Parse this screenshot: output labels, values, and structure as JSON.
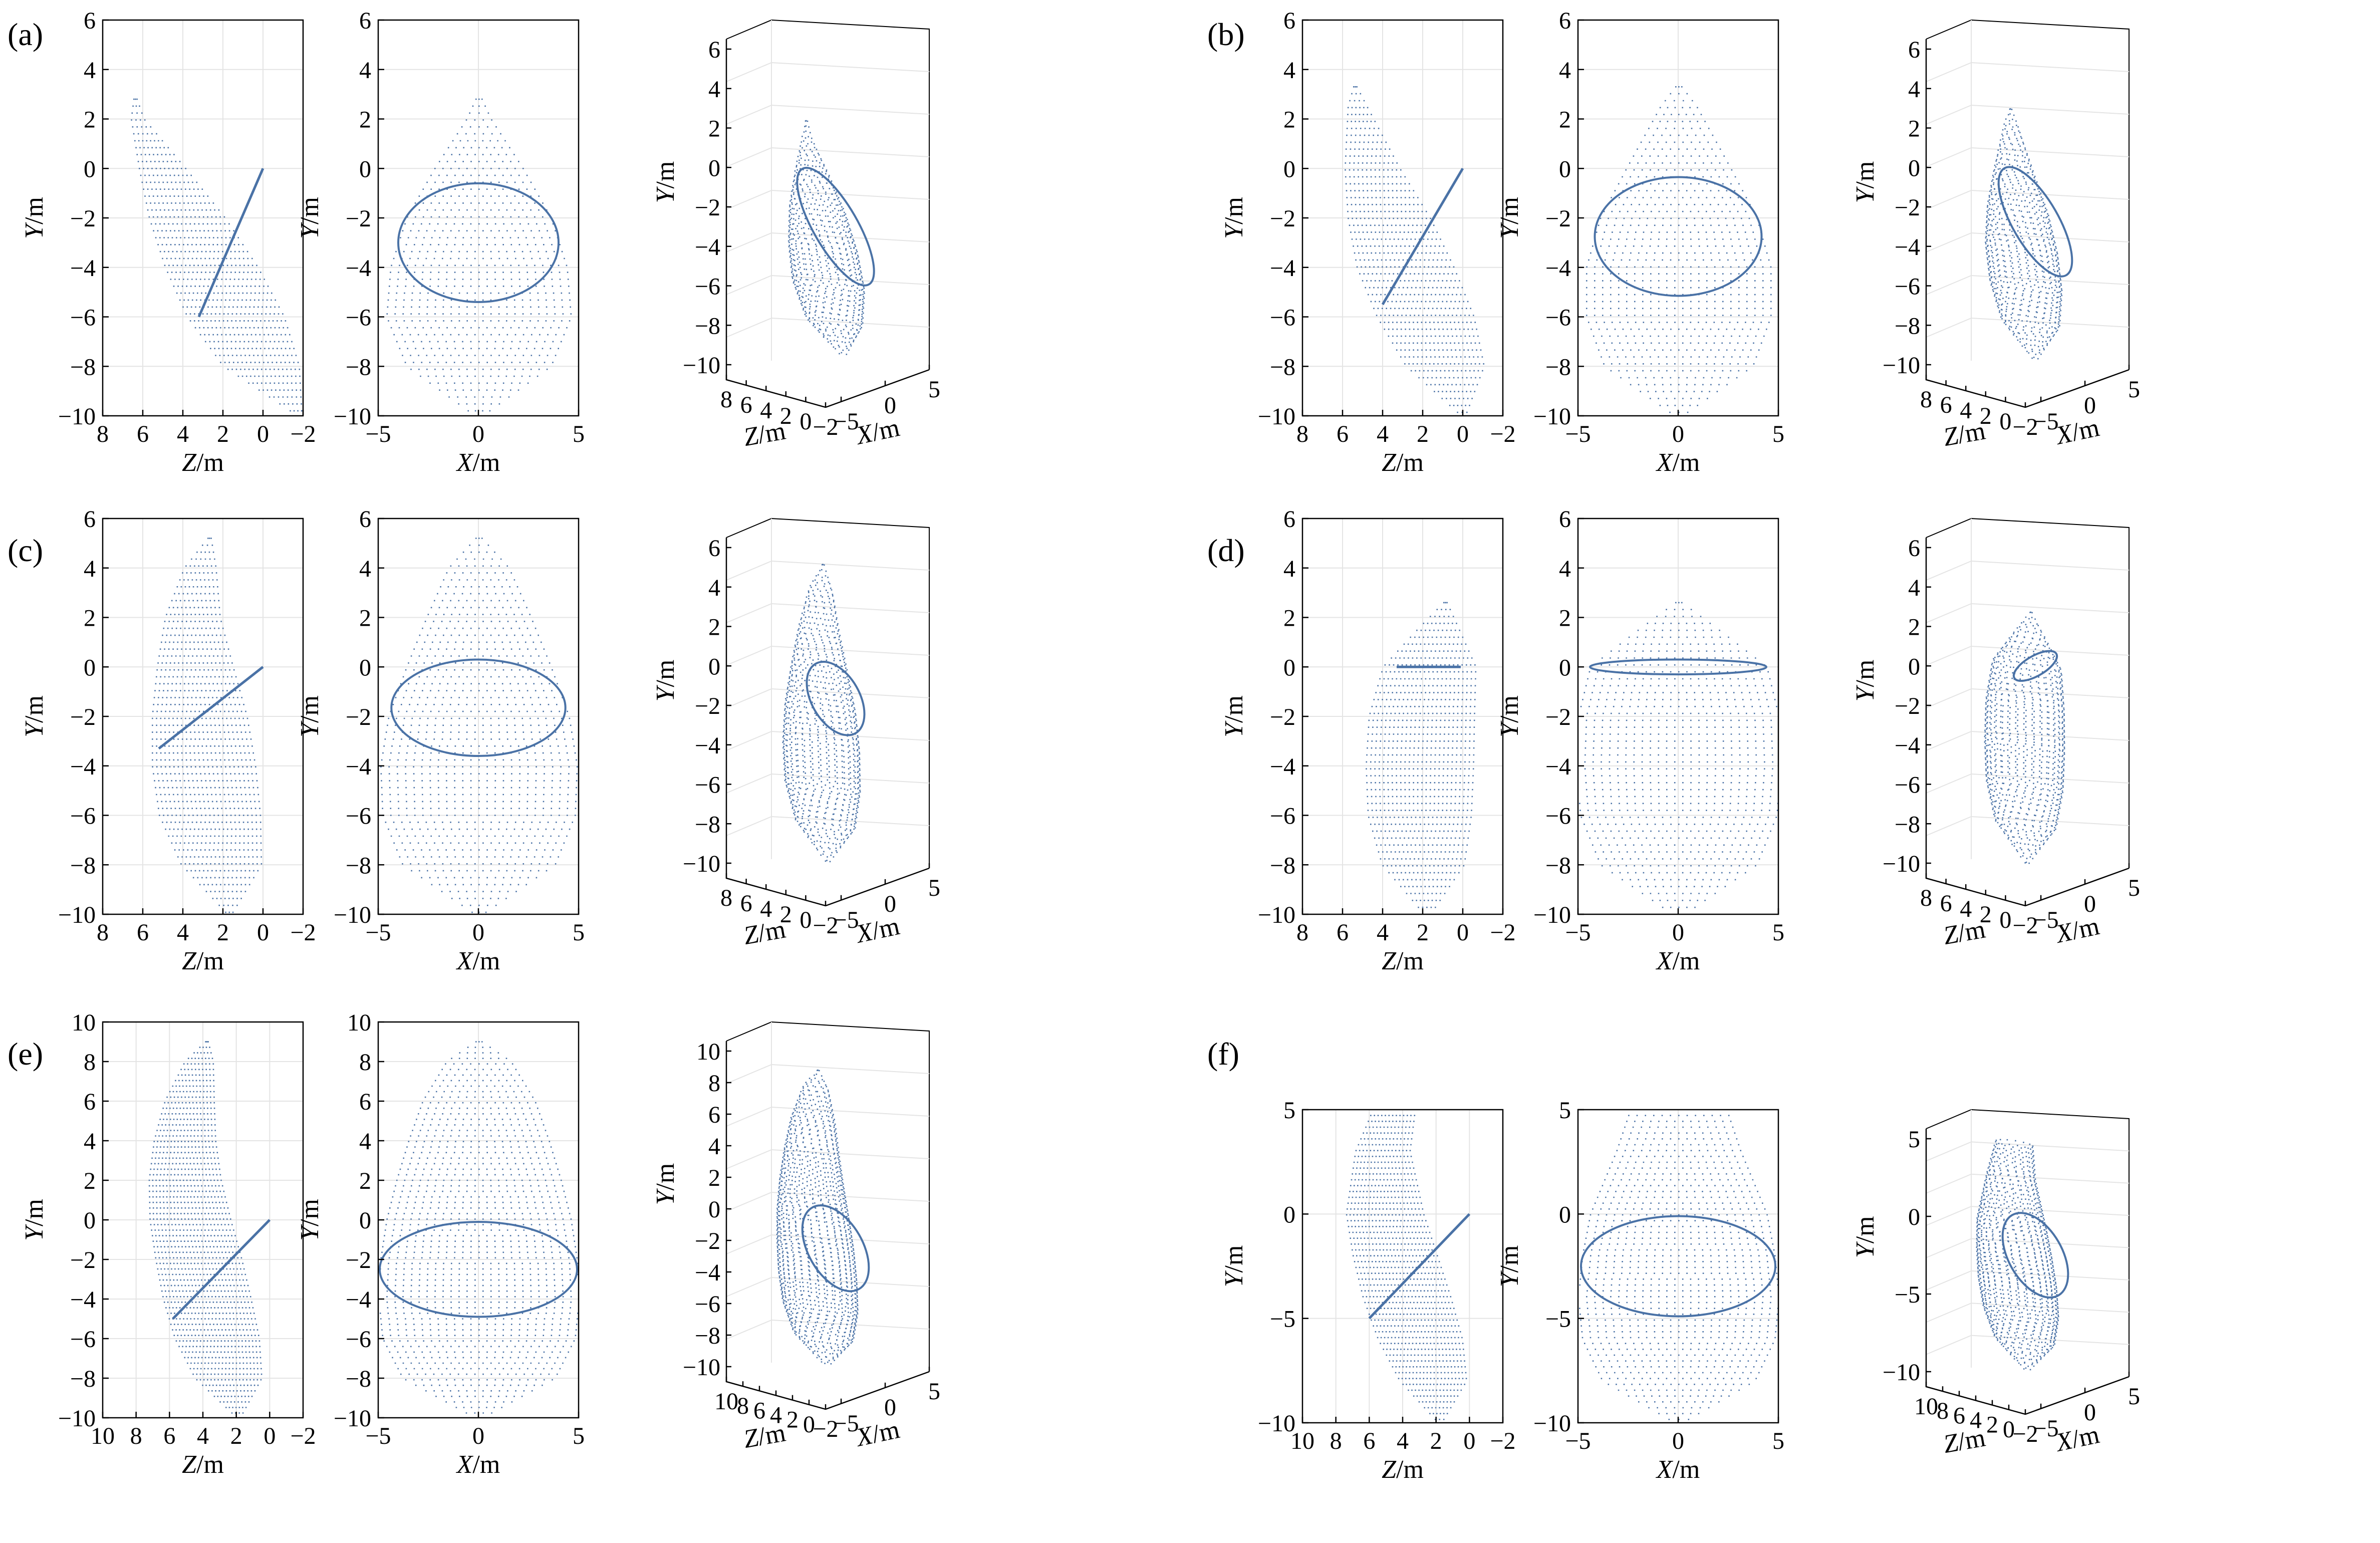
{
  "colors": {
    "points": "#4a72a6",
    "grid": "#e4e4e4",
    "axis": "#000000"
  },
  "chart_data": [
    {
      "label": "(a)",
      "type": "scatter",
      "title": "",
      "series": [
        {
          "name": "cavity point cloud",
          "top": 2.8,
          "bottom": -10,
          "rings": [
            {
              "y": 2.8,
              "z": 6.4,
              "r": 0.15
            },
            {
              "y": 2.0,
              "z": 6.3,
              "r": 0.6
            },
            {
              "y": 0,
              "z": 5.1,
              "r": 2.2
            },
            {
              "y": -2,
              "z": 3.9,
              "r": 3.6
            },
            {
              "y": -4,
              "z": 2.7,
              "r": 4.4
            },
            {
              "y": -6,
              "z": 1.5,
              "r": 4.6
            },
            {
              "y": -8,
              "z": 0.2,
              "r": 3.6
            },
            {
              "y": -10,
              "z": -1.8,
              "r": 0.2
            }
          ],
          "cut": {
            "y1": 0,
            "z1": 0,
            "y2": -6,
            "z2": 3.2
          }
        }
      ],
      "plots": [
        {
          "view": "side",
          "xlabel_var": "Z",
          "xlabel_unit": "/m",
          "ylabel_var": "Y",
          "ylabel_unit": "/m",
          "xlim": [
            8,
            -2
          ],
          "xticks": [
            "8",
            "6",
            "4",
            "2",
            "0",
            "−2"
          ],
          "ylim": [
            -10,
            6
          ],
          "yticks": [
            "6",
            "4",
            "2",
            "0",
            "−2",
            "−4",
            "−6",
            "−8",
            "−10"
          ]
        },
        {
          "view": "front",
          "xlabel_var": "X",
          "xlabel_unit": "/m",
          "ylabel_var": "Y",
          "ylabel_unit": "/m",
          "xlim": [
            -5,
            5
          ],
          "xticks": [
            "−5",
            "0",
            "5"
          ],
          "ylim": [
            -10,
            6
          ],
          "yticks": [
            "6",
            "4",
            "2",
            "0",
            "−2",
            "−4",
            "−6",
            "−8",
            "−10"
          ]
        },
        {
          "view": "3d",
          "xlabel_var": "X",
          "xlabel_unit": "/m",
          "zlabel_var": "Z",
          "zlabel_unit": "/m",
          "ylabel_var": "Y",
          "ylabel_unit": "/m",
          "zticks": [
            "8",
            "6",
            "4",
            "2",
            "0",
            "−2"
          ],
          "xticks": [
            "−5",
            "0",
            "5"
          ],
          "yticks": [
            "6",
            "4",
            "2",
            "0",
            "−2",
            "−4",
            "−6",
            "−8",
            "−10"
          ]
        }
      ]
    },
    {
      "label": "(b)",
      "type": "scatter",
      "title": "",
      "series": [
        {
          "name": "cavity point cloud",
          "top": 3.3,
          "bottom": -10,
          "rings": [
            {
              "y": 3.3,
              "z": 5.4,
              "r": 0.15
            },
            {
              "y": 2.5,
              "z": 5.3,
              "r": 0.9
            },
            {
              "y": 0,
              "z": 4.6,
              "r": 2.6
            },
            {
              "y": -2,
              "z": 3.8,
              "r": 3.9
            },
            {
              "y": -4,
              "z": 3.0,
              "r": 4.6
            },
            {
              "y": -6,
              "z": 2.0,
              "r": 4.6
            },
            {
              "y": -8,
              "z": 1.0,
              "r": 3.7
            },
            {
              "y": -10,
              "z": 0,
              "r": 0.2
            }
          ],
          "cut": {
            "y1": 0,
            "z1": 0,
            "y2": -5.5,
            "z2": 4.0
          }
        }
      ],
      "plots": [
        {
          "view": "side",
          "xlabel_var": "Z",
          "xlabel_unit": "/m",
          "ylabel_var": "Y",
          "ylabel_unit": "/m",
          "xlim": [
            8,
            -2
          ],
          "xticks": [
            "8",
            "6",
            "4",
            "2",
            "0",
            "−2"
          ],
          "ylim": [
            -10,
            6
          ],
          "yticks": [
            "6",
            "4",
            "2",
            "0",
            "−2",
            "−4",
            "−6",
            "−8",
            "−10"
          ]
        },
        {
          "view": "front",
          "xlabel_var": "X",
          "xlabel_unit": "/m",
          "ylabel_var": "Y",
          "ylabel_unit": "/m",
          "xlim": [
            -5,
            5
          ],
          "xticks": [
            "−5",
            "0",
            "5"
          ],
          "ylim": [
            -10,
            6
          ],
          "yticks": [
            "6",
            "4",
            "2",
            "0",
            "−2",
            "−4",
            "−6",
            "−8",
            "−10"
          ]
        },
        {
          "view": "3d",
          "xlabel_var": "X",
          "xlabel_unit": "/m",
          "zlabel_var": "Z",
          "zlabel_unit": "/m",
          "ylabel_var": "Y",
          "ylabel_unit": "/m",
          "zticks": [
            "8",
            "6",
            "4",
            "2",
            "0",
            "−2"
          ],
          "xticks": [
            "−5",
            "0",
            "5"
          ],
          "yticks": [
            "6",
            "4",
            "2",
            "0",
            "−2",
            "−4",
            "−6",
            "−8",
            "−10"
          ]
        }
      ]
    },
    {
      "label": "(c)",
      "type": "scatter",
      "title": "",
      "series": [
        {
          "name": "cavity point cloud",
          "top": 5.2,
          "bottom": -10,
          "rings": [
            {
              "y": 5.2,
              "z": 2.7,
              "r": 0.15
            },
            {
              "y": 4.0,
              "z": 3.2,
              "r": 1.5
            },
            {
              "y": 2,
              "z": 3.6,
              "r": 2.6
            },
            {
              "y": 0,
              "z": 3.5,
              "r": 3.6
            },
            {
              "y": -2,
              "z": 3.3,
              "r": 4.5
            },
            {
              "y": -4,
              "z": 3.1,
              "r": 4.9
            },
            {
              "y": -6,
              "z": 2.8,
              "r": 4.8
            },
            {
              "y": -8,
              "z": 2.2,
              "r": 3.8
            },
            {
              "y": -10,
              "z": 1.7,
              "r": 0.2
            }
          ],
          "cut": {
            "y1": 0,
            "z1": 0,
            "y2": -3.3,
            "z2": 5.2
          }
        }
      ],
      "plots": [
        {
          "view": "side",
          "xlabel_var": "Z",
          "xlabel_unit": "/m",
          "ylabel_var": "Y",
          "ylabel_unit": "/m",
          "xlim": [
            8,
            -2
          ],
          "xticks": [
            "8",
            "6",
            "4",
            "2",
            "0",
            "−2"
          ],
          "ylim": [
            -10,
            6
          ],
          "yticks": [
            "6",
            "4",
            "2",
            "0",
            "−2",
            "−4",
            "−6",
            "−8",
            "−10"
          ]
        },
        {
          "view": "front",
          "xlabel_var": "X",
          "xlabel_unit": "/m",
          "ylabel_var": "Y",
          "ylabel_unit": "/m",
          "xlim": [
            -5,
            5
          ],
          "xticks": [
            "−5",
            "0",
            "5"
          ],
          "ylim": [
            -10,
            6
          ],
          "yticks": [
            "6",
            "4",
            "2",
            "0",
            "−2",
            "−4",
            "−6",
            "−8",
            "−10"
          ]
        },
        {
          "view": "3d",
          "xlabel_var": "X",
          "xlabel_unit": "/m",
          "zlabel_var": "Z",
          "zlabel_unit": "/m",
          "ylabel_var": "Y",
          "ylabel_unit": "/m",
          "zticks": [
            "8",
            "6",
            "4",
            "2",
            "0",
            "−2"
          ],
          "xticks": [
            "−5",
            "0",
            "5"
          ],
          "yticks": [
            "6",
            "4",
            "2",
            "0",
            "−2",
            "−4",
            "−6",
            "−8",
            "−10"
          ]
        }
      ]
    },
    {
      "label": "(d)",
      "type": "scatter",
      "title": "",
      "series": [
        {
          "name": "cavity point cloud",
          "top": 2.6,
          "bottom": -10,
          "rings": [
            {
              "y": 2.6,
              "z": 0.9,
              "r": 0.15
            },
            {
              "y": 1.5,
              "z": 1.3,
              "r": 2.0
            },
            {
              "y": 0,
              "z": 1.8,
              "r": 4.4
            },
            {
              "y": -2,
              "z": 2.2,
              "r": 5.0
            },
            {
              "y": -4,
              "z": 2.3,
              "r": 5.1
            },
            {
              "y": -6,
              "z": 2.3,
              "r": 4.9
            },
            {
              "y": -8,
              "z": 2.1,
              "r": 3.9
            },
            {
              "y": -10,
              "z": 1.8,
              "r": 0.3
            }
          ],
          "cut": {
            "y1": 0,
            "z1": 0.1,
            "y2": 0,
            "z2": 3.3
          }
        }
      ],
      "plots": [
        {
          "view": "side",
          "xlabel_var": "Z",
          "xlabel_unit": "/m",
          "ylabel_var": "Y",
          "ylabel_unit": "/m",
          "xlim": [
            8,
            -2
          ],
          "xticks": [
            "8",
            "6",
            "4",
            "2",
            "0",
            "−2"
          ],
          "ylim": [
            -10,
            6
          ],
          "yticks": [
            "6",
            "4",
            "2",
            "0",
            "−2",
            "−4",
            "−6",
            "−8",
            "−10"
          ]
        },
        {
          "view": "front",
          "xlabel_var": "X",
          "xlabel_unit": "/m",
          "ylabel_var": "Y",
          "ylabel_unit": "/m",
          "xlim": [
            -5,
            5
          ],
          "xticks": [
            "−5",
            "0",
            "5"
          ],
          "ylim": [
            -10,
            6
          ],
          "yticks": [
            "6",
            "4",
            "2",
            "0",
            "−2",
            "−4",
            "−6",
            "−8",
            "−10"
          ]
        },
        {
          "view": "3d",
          "xlabel_var": "X",
          "xlabel_unit": "/m",
          "zlabel_var": "Z",
          "zlabel_unit": "/m",
          "ylabel_var": "Y",
          "ylabel_unit": "/m",
          "zticks": [
            "8",
            "6",
            "4",
            "2",
            "0",
            "−2"
          ],
          "xticks": [
            "−5",
            "0",
            "5"
          ],
          "yticks": [
            "6",
            "4",
            "2",
            "0",
            "−2",
            "−4",
            "−6",
            "−8",
            "−10"
          ]
        }
      ]
    },
    {
      "label": "(e)",
      "type": "scatter",
      "title": "",
      "series": [
        {
          "name": "cavity point cloud",
          "top": 9,
          "bottom": -10,
          "rings": [
            {
              "y": 9,
              "z": 3.8,
              "r": 0.15
            },
            {
              "y": 8,
              "z": 4.3,
              "r": 1.6
            },
            {
              "y": 6,
              "z": 4.9,
              "r": 2.8
            },
            {
              "y": 4,
              "z": 5.2,
              "r": 3.5
            },
            {
              "y": 2,
              "z": 5.2,
              "r": 4.1
            },
            {
              "y": 0,
              "z": 4.9,
              "r": 4.6
            },
            {
              "y": -2,
              "z": 4.4,
              "r": 4.9
            },
            {
              "y": -4,
              "z": 3.9,
              "r": 5.0
            },
            {
              "y": -6,
              "z": 3.3,
              "r": 4.8
            },
            {
              "y": -8,
              "z": 2.6,
              "r": 3.8
            },
            {
              "y": -10,
              "z": 1.9,
              "r": 0.2
            }
          ],
          "cut": {
            "y1": 0,
            "z1": 0,
            "y2": -5,
            "z2": 5.8
          }
        }
      ],
      "plots": [
        {
          "view": "side",
          "xlabel_var": "Z",
          "xlabel_unit": "/m",
          "ylabel_var": "Y",
          "ylabel_unit": "/m",
          "xlim": [
            10,
            -2
          ],
          "xticks": [
            "10",
            "8",
            "6",
            "4",
            "2",
            "0",
            "−2"
          ],
          "ylim": [
            -10,
            10
          ],
          "yticks": [
            "10",
            "8",
            "6",
            "4",
            "2",
            "0",
            "−2",
            "−4",
            "−6",
            "−8",
            "−10"
          ]
        },
        {
          "view": "front",
          "xlabel_var": "X",
          "xlabel_unit": "/m",
          "ylabel_var": "Y",
          "ylabel_unit": "/m",
          "xlim": [
            -5,
            5
          ],
          "xticks": [
            "−5",
            "0",
            "5"
          ],
          "ylim": [
            -10,
            10
          ],
          "yticks": [
            "10",
            "8",
            "6",
            "4",
            "2",
            "0",
            "−2",
            "−4",
            "−6",
            "−8",
            "−10"
          ]
        },
        {
          "view": "3d",
          "xlabel_var": "X",
          "xlabel_unit": "/m",
          "zlabel_var": "Z",
          "zlabel_unit": "/m",
          "ylabel_var": "Y",
          "ylabel_unit": "/m",
          "zticks": [
            "10",
            "8",
            "6",
            "4",
            "2",
            "0",
            "−2"
          ],
          "xticks": [
            "−5",
            "0",
            "5"
          ],
          "yticks": [
            "10",
            "8",
            "6",
            "4",
            "2",
            "0",
            "−2",
            "−4",
            "−6",
            "−8",
            "−10"
          ]
        }
      ]
    },
    {
      "label": "(f)",
      "type": "scatter",
      "title": "",
      "series": [
        {
          "name": "cavity point cloud",
          "top": 5,
          "bottom": -10,
          "rings": [
            {
              "y": 5,
              "z": 4.6,
              "r": 2.4
            },
            {
              "y": 3,
              "z": 5.3,
              "r": 3.1
            },
            {
              "y": 0,
              "z": 5.2,
              "r": 4.4
            },
            {
              "y": -2,
              "z": 4.6,
              "r": 4.8
            },
            {
              "y": -4,
              "z": 3.9,
              "r": 5.0
            },
            {
              "y": -6,
              "z": 3.1,
              "r": 4.8
            },
            {
              "y": -8,
              "z": 2.3,
              "r": 3.8
            },
            {
              "y": -10,
              "z": 1.8,
              "r": 0.2
            }
          ],
          "cut": {
            "y1": 0,
            "z1": 0,
            "y2": -5,
            "z2": 6.0
          }
        }
      ],
      "plots": [
        {
          "view": "side",
          "xlabel_var": "Z",
          "xlabel_unit": "/m",
          "ylabel_var": "Y",
          "ylabel_unit": "/m",
          "xlim": [
            10,
            -2
          ],
          "xticks": [
            "10",
            "8",
            "6",
            "4",
            "2",
            "0",
            "−2"
          ],
          "ylim": [
            -10,
            5
          ],
          "yticks": [
            "5",
            "0",
            "−5",
            "−10"
          ]
        },
        {
          "view": "front",
          "xlabel_var": "X",
          "xlabel_unit": "/m",
          "ylabel_var": "Y",
          "ylabel_unit": "/m",
          "xlim": [
            -5,
            5
          ],
          "xticks": [
            "−5",
            "0",
            "5"
          ],
          "ylim": [
            -10,
            5
          ],
          "yticks": [
            "5",
            "0",
            "−5",
            "−10"
          ]
        },
        {
          "view": "3d",
          "xlabel_var": "X",
          "xlabel_unit": "/m",
          "zlabel_var": "Z",
          "zlabel_unit": "/m",
          "ylabel_var": "Y",
          "ylabel_unit": "/m",
          "zticks": [
            "10",
            "8",
            "6",
            "4",
            "2",
            "0",
            "−2"
          ],
          "xticks": [
            "−5",
            "0",
            "5"
          ],
          "yticks": [
            "5",
            "0",
            "−5",
            "−10"
          ]
        }
      ]
    }
  ]
}
